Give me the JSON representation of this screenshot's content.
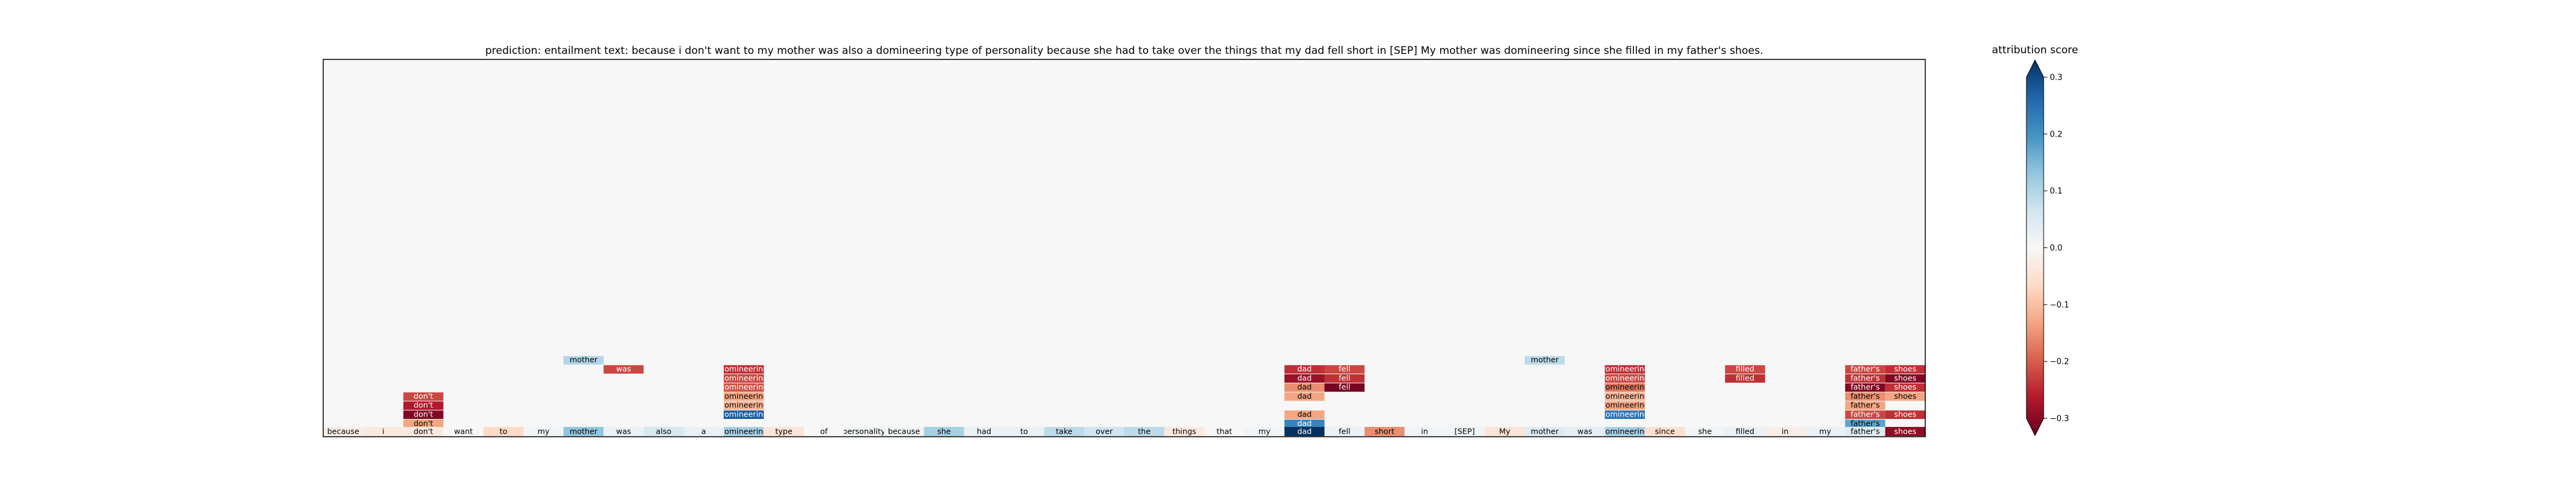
{
  "chart_data": {
    "type": "heatmap",
    "title": "prediction:  entailment     text:  because i don't want to my mother was also a domineering type of personality because she had to take over the things that my dad fell short in [SEP] My mother was domineering since she filled in my father's shoes.",
    "colorbar_label": "attribution score",
    "colorbar_ticks": [
      "0.3",
      "0.2",
      "0.1",
      "0.0",
      "−0.1",
      "−0.2",
      "−0.3"
    ],
    "colorbar_tick_values": [
      0.3,
      0.2,
      0.1,
      0.0,
      -0.1,
      -0.2,
      -0.3
    ],
    "vmin": -0.3,
    "vmax": 0.3,
    "colormap": "RdBu",
    "tokens": [
      {
        "label": "because",
        "score": -0.02
      },
      {
        "label": "i",
        "score": -0.03
      },
      {
        "label": "don't",
        "score": -0.03
      },
      {
        "label": "want",
        "score": 0.0
      },
      {
        "label": "to",
        "score": -0.06
      },
      {
        "label": "my",
        "score": 0.01
      },
      {
        "label": "mother",
        "score": 0.12
      },
      {
        "label": "was",
        "score": 0.02
      },
      {
        "label": "also",
        "score": 0.05
      },
      {
        "label": "a",
        "score": 0.02
      },
      {
        "label": "domineering",
        "score": 0.1
      },
      {
        "label": "type",
        "score": -0.04
      },
      {
        "label": "of",
        "score": 0.0
      },
      {
        "label": "personality",
        "score": 0.01
      },
      {
        "label": "because",
        "score": 0.01
      },
      {
        "label": "she",
        "score": 0.1
      },
      {
        "label": "had",
        "score": 0.02
      },
      {
        "label": "to",
        "score": 0.02
      },
      {
        "label": "take",
        "score": 0.08
      },
      {
        "label": "over",
        "score": 0.06
      },
      {
        "label": "the",
        "score": 0.08
      },
      {
        "label": "things",
        "score": -0.03
      },
      {
        "label": "that",
        "score": 0.0
      },
      {
        "label": "my",
        "score": 0.01
      },
      {
        "label": "dad",
        "score": 0.3
      },
      {
        "label": "fell",
        "score": 0.02
      },
      {
        "label": "short",
        "score": -0.14
      },
      {
        "label": "in",
        "score": 0.01
      },
      {
        "label": "[SEP]",
        "score": 0.01
      },
      {
        "label": "My",
        "score": -0.04
      },
      {
        "label": "mother",
        "score": 0.04
      },
      {
        "label": "was",
        "score": 0.03
      },
      {
        "label": "domineering",
        "score": 0.1
      },
      {
        "label": "since",
        "score": -0.05
      },
      {
        "label": "she",
        "score": 0.01
      },
      {
        "label": "filled",
        "score": 0.02
      },
      {
        "label": "in",
        "score": -0.02
      },
      {
        "label": "my",
        "score": 0.02
      },
      {
        "label": "father's",
        "score": 0.04
      },
      {
        "label": "shoes",
        "score": -0.27
      }
    ],
    "cells": [
      {
        "col": 2,
        "row": 1,
        "label": "don't",
        "score": -0.12
      },
      {
        "col": 2,
        "row": 2,
        "label": "don't",
        "score": -0.28
      },
      {
        "col": 2,
        "row": 3,
        "label": "don't",
        "score": -0.24
      },
      {
        "col": 2,
        "row": 4,
        "label": "don't",
        "score": -0.2
      },
      {
        "col": 6,
        "row": 8,
        "label": "mother",
        "score": 0.09
      },
      {
        "col": 7,
        "row": 7,
        "label": "was",
        "score": -0.2
      },
      {
        "col": 10,
        "row": 2,
        "label": "domineering",
        "score": 0.25
      },
      {
        "col": 10,
        "row": 3,
        "label": "domineering",
        "score": -0.1
      },
      {
        "col": 10,
        "row": 4,
        "label": "domineering",
        "score": -0.12
      },
      {
        "col": 10,
        "row": 5,
        "label": "domineering",
        "score": -0.19
      },
      {
        "col": 10,
        "row": 6,
        "label": "domineering",
        "score": -0.2
      },
      {
        "col": 10,
        "row": 7,
        "label": "domineering",
        "score": -0.22
      },
      {
        "col": 24,
        "row": 1,
        "label": "dad",
        "score": 0.2
      },
      {
        "col": 24,
        "row": 2,
        "label": "dad",
        "score": -0.12
      },
      {
        "col": 24,
        "row": 4,
        "label": "dad",
        "score": -0.12
      },
      {
        "col": 24,
        "row": 5,
        "label": "dad",
        "score": -0.14
      },
      {
        "col": 24,
        "row": 6,
        "label": "dad",
        "score": -0.26
      },
      {
        "col": 24,
        "row": 7,
        "label": "dad",
        "score": -0.22
      },
      {
        "col": 25,
        "row": 5,
        "label": "fell",
        "score": -0.29
      },
      {
        "col": 25,
        "row": 6,
        "label": "fell",
        "score": -0.22
      },
      {
        "col": 25,
        "row": 7,
        "label": "fell",
        "score": -0.2
      },
      {
        "col": 30,
        "row": 8,
        "label": "mother",
        "score": 0.08
      },
      {
        "col": 32,
        "row": 2,
        "label": "domineering",
        "score": 0.22
      },
      {
        "col": 32,
        "row": 3,
        "label": "domineering",
        "score": -0.12
      },
      {
        "col": 32,
        "row": 4,
        "label": "domineering",
        "score": -0.1
      },
      {
        "col": 32,
        "row": 5,
        "label": "domineering",
        "score": -0.16
      },
      {
        "col": 32,
        "row": 6,
        "label": "domineering",
        "score": -0.2
      },
      {
        "col": 32,
        "row": 7,
        "label": "domineering",
        "score": -0.22
      },
      {
        "col": 35,
        "row": 6,
        "label": "filled",
        "score": -0.22
      },
      {
        "col": 35,
        "row": 7,
        "label": "filled",
        "score": -0.2
      },
      {
        "col": 38,
        "row": 1,
        "label": "father's",
        "score": 0.16
      },
      {
        "col": 38,
        "row": 2,
        "label": "father's",
        "score": -0.2
      },
      {
        "col": 38,
        "row": 3,
        "label": "father's",
        "score": -0.12
      },
      {
        "col": 38,
        "row": 4,
        "label": "father's",
        "score": -0.14
      },
      {
        "col": 38,
        "row": 5,
        "label": "father's",
        "score": -0.28
      },
      {
        "col": 38,
        "row": 6,
        "label": "father's",
        "score": -0.22
      },
      {
        "col": 38,
        "row": 7,
        "label": "father's",
        "score": -0.2
      },
      {
        "col": 39,
        "row": 2,
        "label": "shoes",
        "score": -0.22
      },
      {
        "col": 39,
        "row": 4,
        "label": "shoes",
        "score": -0.12
      },
      {
        "col": 39,
        "row": 5,
        "label": "shoes",
        "score": -0.22
      },
      {
        "col": 39,
        "row": 6,
        "label": "shoes",
        "score": -0.28
      },
      {
        "col": 39,
        "row": 7,
        "label": "shoes",
        "score": -0.22
      }
    ]
  }
}
